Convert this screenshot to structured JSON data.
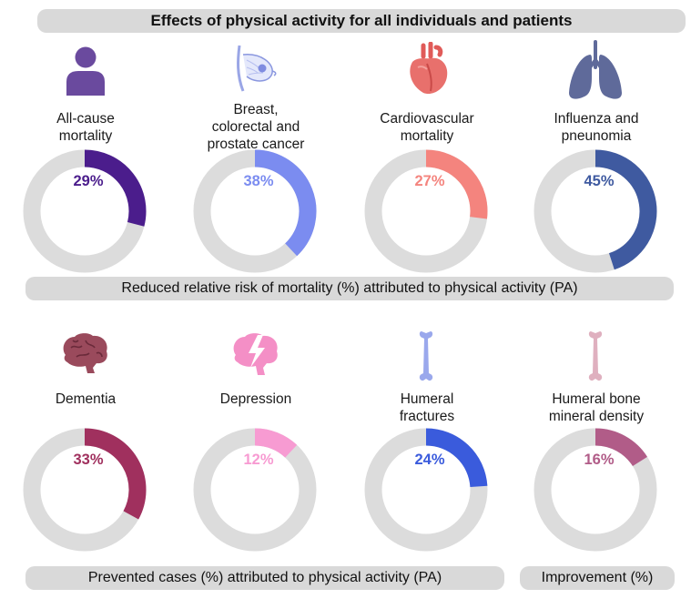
{
  "header": {
    "title": "Effects of physical activity for all individuals and patients"
  },
  "sections": {
    "mortality_caption": "Reduced relative risk of mortality (%) attributed to physical activity (PA)",
    "prevented_caption": "Prevented cases (%) attributed to physical activity (PA)",
    "improvement_caption": "Improvement (%)"
  },
  "icons": [
    "person-icon",
    "breast-icon",
    "heart-icon",
    "lungs-icon",
    "brain-icon",
    "depression-brain-icon",
    "bone-icon",
    "bone-icon"
  ],
  "chart_data": {
    "type": "donut",
    "title": "Effects of physical activity for all individuals and patients",
    "groups": [
      {
        "caption": "Reduced relative risk of mortality (%) attributed to physical activity (PA)",
        "items": [
          {
            "name": "All-cause mortality",
            "label_lines": [
              "All-cause",
              "mortality"
            ],
            "value": 29,
            "color": "#4b1d8c"
          },
          {
            "name": "Breast, colorectal and prostate cancer",
            "label_lines": [
              "Breast,",
              "colorectal and",
              "prostate cancer"
            ],
            "value": 38,
            "color": "#7b8cf0"
          },
          {
            "name": "Cardiovascular mortality",
            "label_lines": [
              "Cardiovascular",
              "mortality"
            ],
            "value": 27,
            "color": "#f4847e"
          },
          {
            "name": "Influenza and pneunomia",
            "label_lines": [
              "Influenza and",
              "pneunomia"
            ],
            "value": 45,
            "color": "#3f5aa0"
          }
        ]
      },
      {
        "caption": "Prevented cases (%) attributed to physical activity (PA)",
        "items": [
          {
            "name": "Dementia",
            "label_lines": [
              "Dementia"
            ],
            "value": 33,
            "color": "#a0305e"
          },
          {
            "name": "Depression",
            "label_lines": [
              "Depression"
            ],
            "value": 12,
            "color": "#f79bd2"
          },
          {
            "name": "Humeral fractures",
            "label_lines": [
              "Humeral",
              "fractures"
            ],
            "value": 24,
            "color": "#3a5bdc"
          }
        ]
      },
      {
        "caption": "Improvement (%)",
        "items": [
          {
            "name": "Humeral bone mineral density",
            "label_lines": [
              "Humeral bone",
              "mineral density"
            ],
            "value": 16,
            "color": "#b15c88"
          }
        ]
      }
    ],
    "track_color": "#dcdcdc",
    "unit": "%"
  }
}
